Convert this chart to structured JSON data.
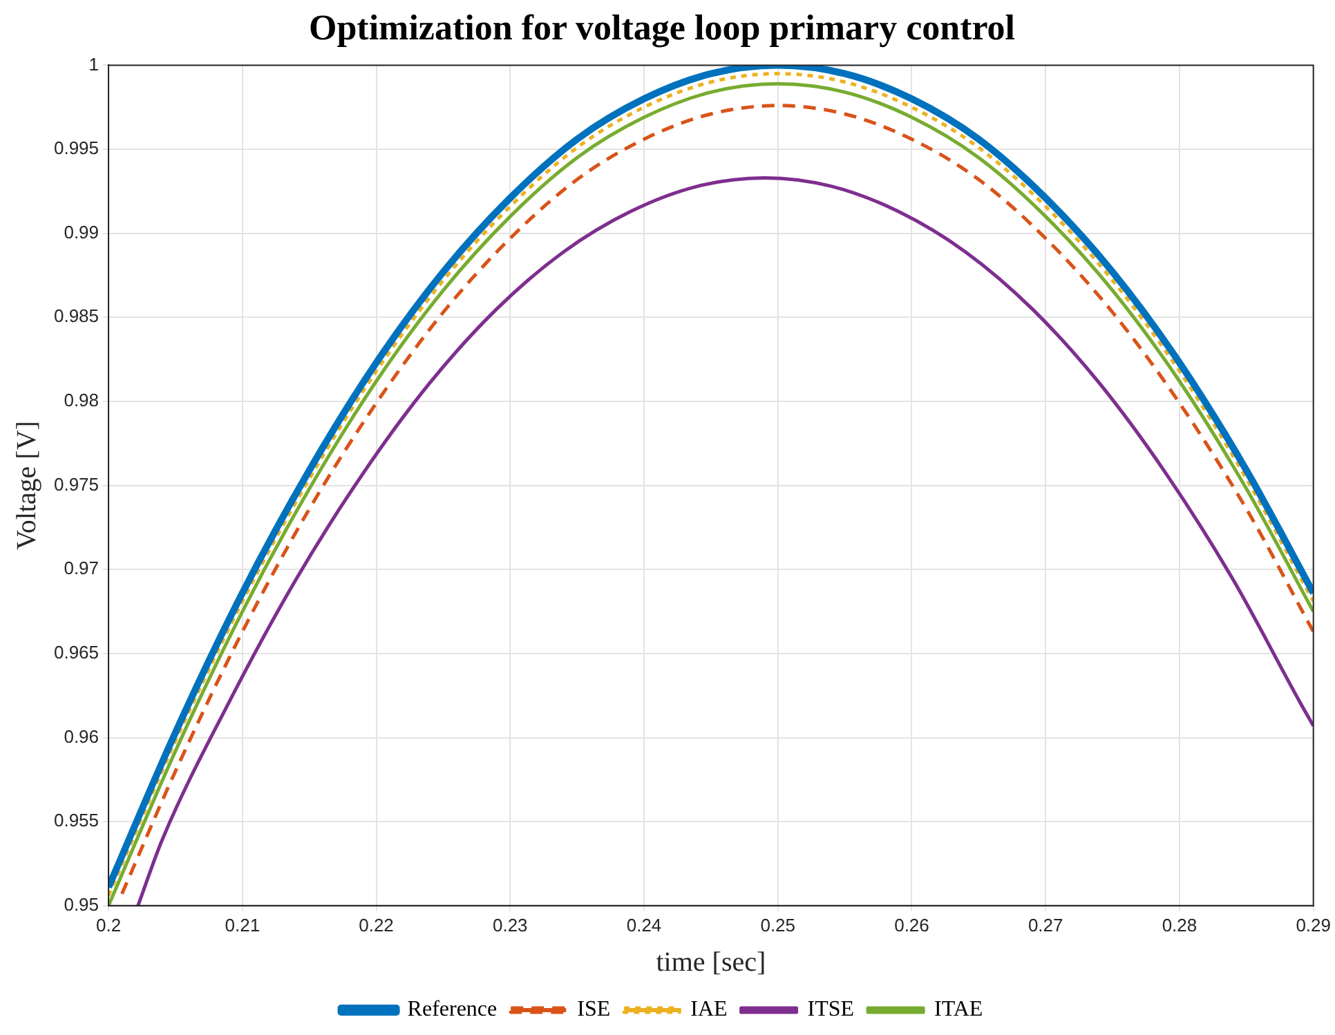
{
  "chart_data": {
    "type": "line",
    "title": "Optimization for voltage loop primary control",
    "xlabel": "time [sec]",
    "ylabel": "Voltage [V]",
    "x": [
      0.2,
      0.205,
      0.21,
      0.215,
      0.22,
      0.225,
      0.23,
      0.235,
      0.24,
      0.245,
      0.25,
      0.255,
      0.26,
      0.265,
      0.27,
      0.275,
      0.28,
      0.285,
      0.29
    ],
    "series": [
      {
        "name": "Reference",
        "color": "#0072bd",
        "line_style": "solid",
        "values": [
          0.9511,
          0.9603,
          0.9686,
          0.9759,
          0.9823,
          0.9877,
          0.9921,
          0.9956,
          0.998,
          0.9995,
          1,
          0.9995,
          0.998,
          0.9956,
          0.9921,
          0.9877,
          0.9823,
          0.9759,
          0.9686
        ]
      },
      {
        "name": "ISE",
        "color": "#d95319",
        "line_style": "dashed",
        "x": [
          0.201,
          0.205,
          0.21,
          0.215,
          0.22,
          0.225,
          0.23,
          0.235,
          0.24,
          0.245,
          0.25,
          0.255,
          0.26,
          0.265,
          0.27,
          0.275,
          0.28,
          0.285,
          0.29
        ],
        "values": [
          0.9507,
          0.958,
          0.9663,
          0.9736,
          0.9799,
          0.9853,
          0.9897,
          0.9932,
          0.9956,
          0.9971,
          0.9976,
          0.9971,
          0.9956,
          0.9932,
          0.9897,
          0.9853,
          0.9799,
          0.9736,
          0.9663
        ]
      },
      {
        "name": "IAE",
        "color": "#edb120",
        "line_style": "dotted",
        "values": [
          0.9506,
          0.9598,
          0.9681,
          0.9754,
          0.9818,
          0.9872,
          0.9916,
          0.9951,
          0.9975,
          0.999,
          0.9995,
          0.999,
          0.9975,
          0.9951,
          0.9916,
          0.9872,
          0.9818,
          0.9754,
          0.9681
        ]
      },
      {
        "name": "ITSE",
        "color": "#7e2f8e",
        "line_style": "solid",
        "x": [
          0.2022,
          0.204,
          0.209,
          0.214,
          0.219,
          0.224,
          0.229,
          0.234,
          0.239,
          0.244,
          0.249,
          0.254,
          0.259,
          0.264,
          0.269,
          0.274,
          0.279,
          0.284,
          0.289,
          0.29
        ],
        "values": [
          0.95,
          0.9539,
          0.9621,
          0.9694,
          0.9757,
          0.9811,
          0.9855,
          0.9889,
          0.9913,
          0.9928,
          0.9933,
          0.9928,
          0.9913,
          0.9889,
          0.9855,
          0.9811,
          0.9757,
          0.9694,
          0.9621,
          0.9607
        ]
      },
      {
        "name": "ITAE",
        "color": "#77ac30",
        "line_style": "solid",
        "values": [
          0.95,
          0.9592,
          0.9675,
          0.9748,
          0.9812,
          0.9866,
          0.991,
          0.9945,
          0.9969,
          0.9984,
          0.9989,
          0.9984,
          0.9969,
          0.9945,
          0.991,
          0.9866,
          0.9812,
          0.9748,
          0.9675
        ]
      }
    ],
    "xlim": [
      0.2,
      0.29
    ],
    "xticks": [
      0.2,
      0.21,
      0.22,
      0.23,
      0.24,
      0.25,
      0.26,
      0.27,
      0.28,
      0.29
    ],
    "ylim": [
      0.95,
      1
    ],
    "yticks": [
      0.95,
      0.955,
      0.96,
      0.965,
      0.97,
      0.975,
      0.98,
      0.985,
      0.99,
      0.995,
      1
    ],
    "grid": true,
    "legend": "bottom",
    "marker": "none"
  }
}
